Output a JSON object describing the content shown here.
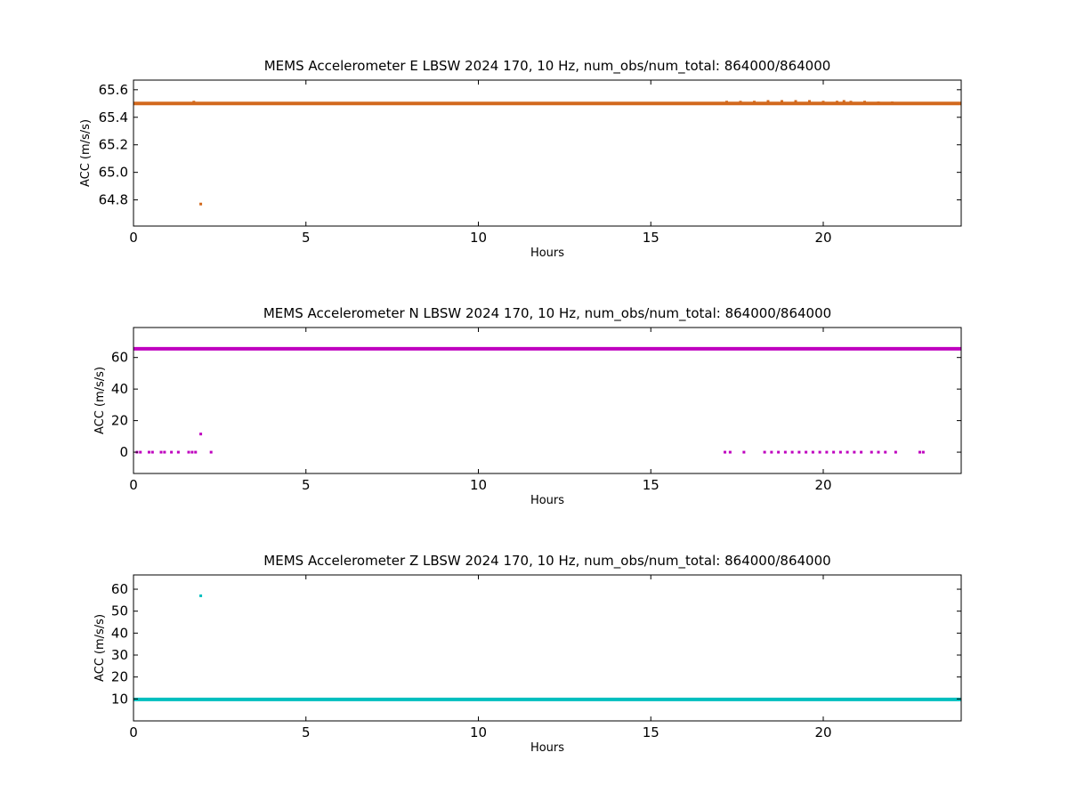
{
  "chart_data": [
    {
      "type": "scatter",
      "title": "MEMS Accelerometer E LBSW 2024 170, 10 Hz, num_obs/num_total: 864000/864000",
      "xlabel": "Hours",
      "ylabel": "ACC (m/s/s)",
      "xlim": [
        0,
        24
      ],
      "ylim": [
        64.61,
        65.67
      ],
      "xticks": [
        0,
        5,
        10,
        15,
        20
      ],
      "yticks": [
        64.8,
        65.0,
        65.2,
        65.4,
        65.6
      ],
      "ytick_labels": [
        "64.8",
        "65.0",
        "65.2",
        "65.4",
        "65.6"
      ],
      "grid": false,
      "color": "#d2691e",
      "series": [
        {
          "baseline": {
            "x": [
              0,
              24
            ],
            "y": 65.5
          },
          "points": [
            {
              "x": 1.75,
              "y": 65.51
            },
            {
              "x": 1.95,
              "y": 64.77
            },
            {
              "x": 17.2,
              "y": 65.51
            },
            {
              "x": 17.6,
              "y": 65.51
            },
            {
              "x": 18.0,
              "y": 65.51
            },
            {
              "x": 18.4,
              "y": 65.515
            },
            {
              "x": 18.8,
              "y": 65.515
            },
            {
              "x": 19.2,
              "y": 65.515
            },
            {
              "x": 19.6,
              "y": 65.515
            },
            {
              "x": 20.0,
              "y": 65.51
            },
            {
              "x": 20.4,
              "y": 65.51
            },
            {
              "x": 20.6,
              "y": 65.515
            },
            {
              "x": 20.8,
              "y": 65.51
            },
            {
              "x": 21.2,
              "y": 65.51
            },
            {
              "x": 21.6,
              "y": 65.505
            },
            {
              "x": 22.0,
              "y": 65.505
            }
          ]
        }
      ]
    },
    {
      "type": "scatter",
      "title": "MEMS Accelerometer N LBSW 2024 170, 10 Hz, num_obs/num_total: 864000/864000",
      "xlabel": "Hours",
      "ylabel": "ACC (m/s/s)",
      "xlim": [
        0,
        24
      ],
      "ylim": [
        -13.5,
        79
      ],
      "xticks": [
        0,
        5,
        10,
        15,
        20
      ],
      "yticks": [
        0,
        20,
        40,
        60
      ],
      "ytick_labels": [
        "0",
        "20",
        "40",
        "60"
      ],
      "grid": false,
      "color": "#bf00bf",
      "series": [
        {
          "baseline": {
            "x": [
              0,
              24
            ],
            "y": 65.5
          },
          "points": [
            {
              "x": 0.1,
              "y": 0
            },
            {
              "x": 0.2,
              "y": 0
            },
            {
              "x": 0.45,
              "y": 0
            },
            {
              "x": 0.55,
              "y": 0
            },
            {
              "x": 0.8,
              "y": 0
            },
            {
              "x": 0.9,
              "y": 0
            },
            {
              "x": 1.1,
              "y": 0
            },
            {
              "x": 1.3,
              "y": 0
            },
            {
              "x": 1.6,
              "y": 0
            },
            {
              "x": 1.7,
              "y": 0
            },
            {
              "x": 1.8,
              "y": 0
            },
            {
              "x": 1.95,
              "y": 11.5
            },
            {
              "x": 2.25,
              "y": 0
            },
            {
              "x": 17.15,
              "y": 0
            },
            {
              "x": 17.3,
              "y": 0
            },
            {
              "x": 17.7,
              "y": 0
            },
            {
              "x": 18.3,
              "y": 0
            },
            {
              "x": 18.5,
              "y": 0
            },
            {
              "x": 18.7,
              "y": 0
            },
            {
              "x": 18.9,
              "y": 0
            },
            {
              "x": 19.1,
              "y": 0
            },
            {
              "x": 19.3,
              "y": 0
            },
            {
              "x": 19.5,
              "y": 0
            },
            {
              "x": 19.7,
              "y": 0
            },
            {
              "x": 19.9,
              "y": 0
            },
            {
              "x": 20.1,
              "y": 0
            },
            {
              "x": 20.3,
              "y": 0
            },
            {
              "x": 20.5,
              "y": 0
            },
            {
              "x": 20.7,
              "y": 0
            },
            {
              "x": 20.9,
              "y": 0
            },
            {
              "x": 21.1,
              "y": 0
            },
            {
              "x": 21.4,
              "y": 0
            },
            {
              "x": 21.6,
              "y": 0
            },
            {
              "x": 21.8,
              "y": 0
            },
            {
              "x": 22.1,
              "y": 0
            },
            {
              "x": 22.8,
              "y": 0
            },
            {
              "x": 22.9,
              "y": 0
            }
          ]
        }
      ]
    },
    {
      "type": "scatter",
      "title": "MEMS Accelerometer Z LBSW 2024 170, 10 Hz, num_obs/num_total: 864000/864000",
      "xlabel": "Hours",
      "ylabel": "ACC (m/s/s)",
      "xlim": [
        0,
        24
      ],
      "ylim": [
        0,
        66.5
      ],
      "xticks": [
        0,
        5,
        10,
        15,
        20
      ],
      "yticks": [
        10,
        20,
        30,
        40,
        50,
        60
      ],
      "ytick_labels": [
        "10",
        "20",
        "30",
        "40",
        "50",
        "60"
      ],
      "grid": false,
      "color": "#00bfbf",
      "series": [
        {
          "baseline": {
            "x": [
              0,
              24
            ],
            "y": 9.8
          },
          "points": [
            {
              "x": 1.95,
              "y": 57
            }
          ]
        }
      ]
    }
  ]
}
